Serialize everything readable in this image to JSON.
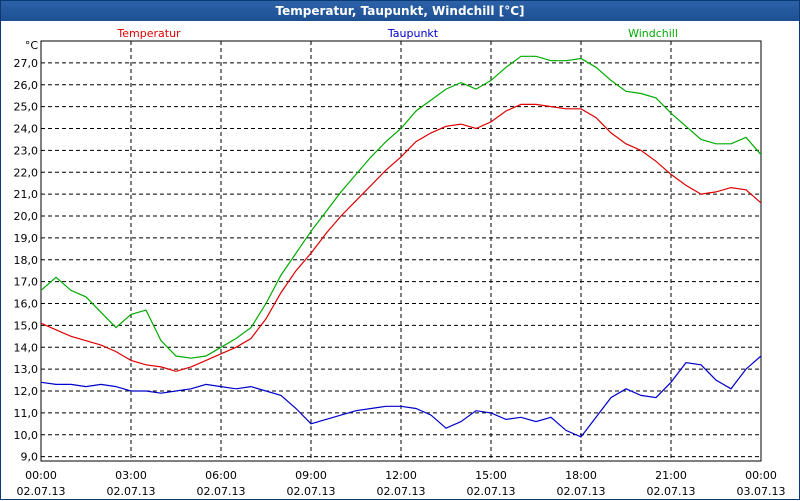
{
  "window": {
    "title": "Temperatur, Taupunkt, Windchill [°C]"
  },
  "chart_data": {
    "type": "line",
    "title": "Temperatur, Taupunkt, Windchill [°C]",
    "ylabel": "°C",
    "ylim": [
      8.8,
      28.0
    ],
    "yticks": [
      "9,0",
      "10,0",
      "11,0",
      "12,0",
      "13,0",
      "14,0",
      "15,0",
      "16,0",
      "17,0",
      "18,0",
      "19,0",
      "20,0",
      "21,0",
      "22,0",
      "23,0",
      "24,0",
      "25,0",
      "26,0",
      "27,0"
    ],
    "xlim": [
      0,
      24
    ],
    "xticks": [
      {
        "time": "00:00",
        "date": "02.07.13"
      },
      {
        "time": "03:00",
        "date": "02.07.13"
      },
      {
        "time": "06:00",
        "date": "02.07.13"
      },
      {
        "time": "09:00",
        "date": "02.07.13"
      },
      {
        "time": "12:00",
        "date": "02.07.13"
      },
      {
        "time": "15:00",
        "date": "02.07.13"
      },
      {
        "time": "18:00",
        "date": "02.07.13"
      },
      {
        "time": "21:00",
        "date": "02.07.13"
      },
      {
        "time": "00:00",
        "date": "03.07.13"
      }
    ],
    "grid": true,
    "legend_position": "top",
    "series": [
      {
        "name": "Temperatur",
        "color": "#dd0000",
        "points": [
          [
            0,
            15.1
          ],
          [
            0.5,
            14.8
          ],
          [
            1,
            14.5
          ],
          [
            1.5,
            14.3
          ],
          [
            2,
            14.1
          ],
          [
            2.5,
            13.8
          ],
          [
            3,
            13.4
          ],
          [
            3.5,
            13.2
          ],
          [
            4,
            13.1
          ],
          [
            4.5,
            12.9
          ],
          [
            5,
            13.1
          ],
          [
            5.5,
            13.4
          ],
          [
            6,
            13.7
          ],
          [
            6.5,
            14.0
          ],
          [
            7,
            14.4
          ],
          [
            7.5,
            15.3
          ],
          [
            8,
            16.5
          ],
          [
            8.5,
            17.5
          ],
          [
            9,
            18.3
          ],
          [
            9.5,
            19.2
          ],
          [
            10,
            20.0
          ],
          [
            10.5,
            20.7
          ],
          [
            11,
            21.4
          ],
          [
            11.5,
            22.1
          ],
          [
            12,
            22.7
          ],
          [
            12.5,
            23.4
          ],
          [
            13,
            23.8
          ],
          [
            13.5,
            24.1
          ],
          [
            14,
            24.2
          ],
          [
            14.5,
            24.0
          ],
          [
            15,
            24.3
          ],
          [
            15.5,
            24.8
          ],
          [
            16,
            25.1
          ],
          [
            16.5,
            25.1
          ],
          [
            17,
            25.0
          ],
          [
            17.5,
            24.9
          ],
          [
            18,
            24.9
          ],
          [
            18.5,
            24.5
          ],
          [
            19,
            23.8
          ],
          [
            19.5,
            23.3
          ],
          [
            20,
            23.0
          ],
          [
            20.5,
            22.5
          ],
          [
            21,
            21.9
          ],
          [
            21.5,
            21.4
          ],
          [
            22,
            21.0
          ],
          [
            22.5,
            21.1
          ],
          [
            23,
            21.3
          ],
          [
            23.5,
            21.2
          ],
          [
            24,
            20.6
          ]
        ]
      },
      {
        "name": "Taupunkt",
        "color": "#0000cc",
        "points": [
          [
            0,
            12.4
          ],
          [
            0.5,
            12.3
          ],
          [
            1,
            12.3
          ],
          [
            1.5,
            12.2
          ],
          [
            2,
            12.3
          ],
          [
            2.5,
            12.2
          ],
          [
            3,
            12.0
          ],
          [
            3.5,
            12.0
          ],
          [
            4,
            11.9
          ],
          [
            4.5,
            12.0
          ],
          [
            5,
            12.1
          ],
          [
            5.5,
            12.3
          ],
          [
            6,
            12.2
          ],
          [
            6.5,
            12.1
          ],
          [
            7,
            12.2
          ],
          [
            7.5,
            12.0
          ],
          [
            8,
            11.8
          ],
          [
            8.5,
            11.2
          ],
          [
            9,
            10.5
          ],
          [
            9.5,
            10.7
          ],
          [
            10,
            10.9
          ],
          [
            10.5,
            11.1
          ],
          [
            11,
            11.2
          ],
          [
            11.5,
            11.3
          ],
          [
            12,
            11.3
          ],
          [
            12.5,
            11.2
          ],
          [
            13,
            10.9
          ],
          [
            13.5,
            10.3
          ],
          [
            14,
            10.6
          ],
          [
            14.5,
            11.1
          ],
          [
            15,
            11.0
          ],
          [
            15.5,
            10.7
          ],
          [
            16,
            10.8
          ],
          [
            16.5,
            10.6
          ],
          [
            17,
            10.8
          ],
          [
            17.5,
            10.2
          ],
          [
            18,
            9.9
          ],
          [
            18.5,
            10.8
          ],
          [
            19,
            11.7
          ],
          [
            19.5,
            12.1
          ],
          [
            20,
            11.8
          ],
          [
            20.5,
            11.7
          ],
          [
            21,
            12.4
          ],
          [
            21.5,
            13.3
          ],
          [
            22,
            13.2
          ],
          [
            22.5,
            12.5
          ],
          [
            23,
            12.1
          ],
          [
            23.5,
            13.0
          ],
          [
            24,
            13.6
          ]
        ]
      },
      {
        "name": "Windchill",
        "color": "#00aa00",
        "points": [
          [
            0,
            16.6
          ],
          [
            0.5,
            17.2
          ],
          [
            1,
            16.6
          ],
          [
            1.5,
            16.3
          ],
          [
            2,
            15.6
          ],
          [
            2.5,
            14.9
          ],
          [
            3,
            15.5
          ],
          [
            3.5,
            15.7
          ],
          [
            4,
            14.3
          ],
          [
            4.5,
            13.6
          ],
          [
            5,
            13.5
          ],
          [
            5.5,
            13.6
          ],
          [
            6,
            14.0
          ],
          [
            6.5,
            14.4
          ],
          [
            7,
            14.9
          ],
          [
            7.5,
            16.0
          ],
          [
            8,
            17.3
          ],
          [
            8.5,
            18.3
          ],
          [
            9,
            19.3
          ],
          [
            9.5,
            20.2
          ],
          [
            10,
            21.1
          ],
          [
            10.5,
            21.9
          ],
          [
            11,
            22.7
          ],
          [
            11.5,
            23.4
          ],
          [
            12,
            24.0
          ],
          [
            12.5,
            24.8
          ],
          [
            13,
            25.3
          ],
          [
            13.5,
            25.8
          ],
          [
            14,
            26.1
          ],
          [
            14.5,
            25.8
          ],
          [
            15,
            26.2
          ],
          [
            15.5,
            26.8
          ],
          [
            16,
            27.3
          ],
          [
            16.5,
            27.3
          ],
          [
            17,
            27.1
          ],
          [
            17.5,
            27.1
          ],
          [
            18,
            27.2
          ],
          [
            18.5,
            26.8
          ],
          [
            19,
            26.2
          ],
          [
            19.5,
            25.7
          ],
          [
            20,
            25.6
          ],
          [
            20.5,
            25.4
          ],
          [
            21,
            24.7
          ],
          [
            21.5,
            24.1
          ],
          [
            22,
            23.5
          ],
          [
            22.5,
            23.3
          ],
          [
            23,
            23.3
          ],
          [
            23.5,
            23.6
          ],
          [
            24,
            22.8
          ]
        ]
      }
    ]
  }
}
